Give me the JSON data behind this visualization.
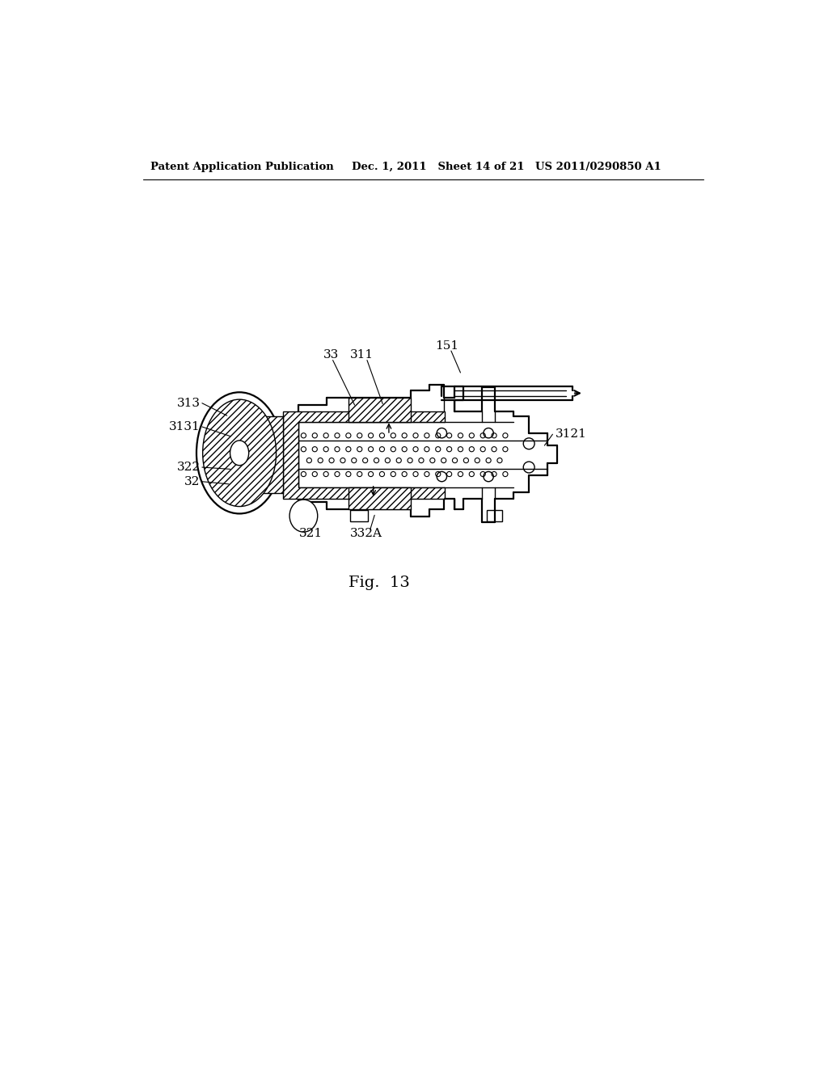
{
  "bg_color": "#ffffff",
  "header_left": "Patent Application Publication",
  "header_mid": "Dec. 1, 2011   Sheet 14 of 21",
  "header_right": "US 2011/0290850 A1",
  "fig_label": "Fig.  13",
  "label_fontsize": 11,
  "header_fontsize": 9.5
}
